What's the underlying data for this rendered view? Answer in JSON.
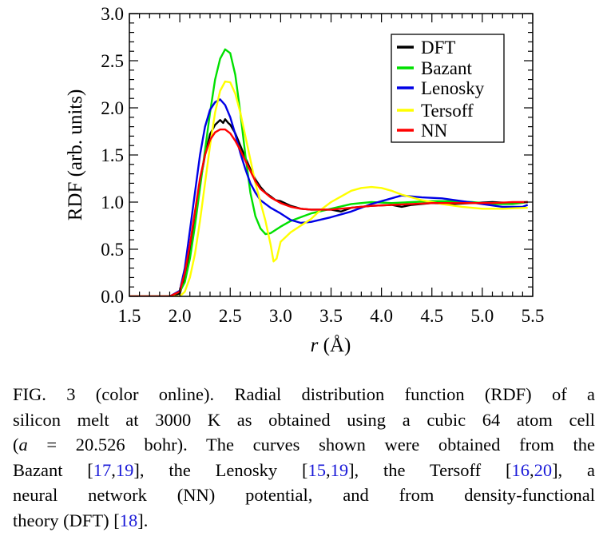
{
  "chart_data": {
    "type": "line",
    "xlabel_italic": "r",
    "xlabel_rest": " (Å)",
    "ylabel": "RDF (arb. units)",
    "xlim": [
      1.5,
      5.5
    ],
    "ylim": [
      0.0,
      3.0
    ],
    "xticks": [
      "1.5",
      "2.0",
      "2.5",
      "3.0",
      "3.5",
      "4.0",
      "4.5",
      "5.0",
      "5.5"
    ],
    "yticks": [
      "0.0",
      "0.5",
      "1.0",
      "1.5",
      "2.0",
      "2.5",
      "3.0"
    ],
    "grid": false,
    "legend_position": "top-right",
    "series": [
      {
        "name": "DFT",
        "color": "#000000",
        "points": [
          [
            1.5,
            0
          ],
          [
            1.9,
            0
          ],
          [
            2.0,
            0.03
          ],
          [
            2.05,
            0.2
          ],
          [
            2.1,
            0.5
          ],
          [
            2.15,
            0.85
          ],
          [
            2.2,
            1.2
          ],
          [
            2.25,
            1.5
          ],
          [
            2.3,
            1.72
          ],
          [
            2.35,
            1.82
          ],
          [
            2.4,
            1.87
          ],
          [
            2.43,
            1.84
          ],
          [
            2.45,
            1.88
          ],
          [
            2.48,
            1.84
          ],
          [
            2.5,
            1.82
          ],
          [
            2.55,
            1.73
          ],
          [
            2.6,
            1.6
          ],
          [
            2.65,
            1.47
          ],
          [
            2.7,
            1.35
          ],
          [
            2.75,
            1.24
          ],
          [
            2.8,
            1.16
          ],
          [
            2.85,
            1.1
          ],
          [
            2.9,
            1.06
          ],
          [
            2.95,
            1.02
          ],
          [
            3.0,
            1.01
          ],
          [
            3.1,
            0.96
          ],
          [
            3.2,
            0.93
          ],
          [
            3.3,
            0.92
          ],
          [
            3.5,
            0.92
          ],
          [
            3.6,
            0.9
          ],
          [
            3.7,
            0.94
          ],
          [
            3.9,
            0.96
          ],
          [
            4.1,
            0.97
          ],
          [
            4.2,
            0.95
          ],
          [
            4.3,
            0.97
          ],
          [
            4.5,
            0.99
          ],
          [
            4.7,
            0.98
          ],
          [
            4.9,
            0.99
          ],
          [
            5.1,
            1.0
          ],
          [
            5.3,
            0.99
          ],
          [
            5.45,
            1.0
          ]
        ]
      },
      {
        "name": "Bazant",
        "color": "#00e000",
        "points": [
          [
            1.5,
            0
          ],
          [
            1.9,
            0
          ],
          [
            2.0,
            0.05
          ],
          [
            2.05,
            0.15
          ],
          [
            2.1,
            0.4
          ],
          [
            2.15,
            0.75
          ],
          [
            2.2,
            1.15
          ],
          [
            2.25,
            1.55
          ],
          [
            2.3,
            1.95
          ],
          [
            2.35,
            2.3
          ],
          [
            2.4,
            2.52
          ],
          [
            2.45,
            2.62
          ],
          [
            2.5,
            2.58
          ],
          [
            2.55,
            2.35
          ],
          [
            2.6,
            1.95
          ],
          [
            2.65,
            1.5
          ],
          [
            2.7,
            1.1
          ],
          [
            2.75,
            0.85
          ],
          [
            2.8,
            0.72
          ],
          [
            2.85,
            0.66
          ],
          [
            2.9,
            0.67
          ],
          [
            3.0,
            0.74
          ],
          [
            3.1,
            0.8
          ],
          [
            3.2,
            0.84
          ],
          [
            3.3,
            0.88
          ],
          [
            3.5,
            0.93
          ],
          [
            3.7,
            0.98
          ],
          [
            3.9,
            1.0
          ],
          [
            4.1,
            0.99
          ],
          [
            4.3,
            1.0
          ],
          [
            4.5,
            1.01
          ],
          [
            4.7,
            1.01
          ],
          [
            4.9,
            1.0
          ],
          [
            5.1,
            0.98
          ],
          [
            5.3,
            0.98
          ],
          [
            5.45,
            1.0
          ]
        ]
      },
      {
        "name": "Lenosky",
        "color": "#0000e6",
        "points": [
          [
            1.5,
            0
          ],
          [
            1.9,
            0
          ],
          [
            2.0,
            0.06
          ],
          [
            2.05,
            0.3
          ],
          [
            2.1,
            0.7
          ],
          [
            2.15,
            1.1
          ],
          [
            2.2,
            1.5
          ],
          [
            2.25,
            1.8
          ],
          [
            2.3,
            1.98
          ],
          [
            2.35,
            2.06
          ],
          [
            2.4,
            2.09
          ],
          [
            2.45,
            2.03
          ],
          [
            2.5,
            1.9
          ],
          [
            2.55,
            1.72
          ],
          [
            2.6,
            1.52
          ],
          [
            2.65,
            1.35
          ],
          [
            2.7,
            1.2
          ],
          [
            2.75,
            1.1
          ],
          [
            2.8,
            1.02
          ],
          [
            2.9,
            0.94
          ],
          [
            3.0,
            0.88
          ],
          [
            3.1,
            0.81
          ],
          [
            3.2,
            0.78
          ],
          [
            3.3,
            0.79
          ],
          [
            3.5,
            0.84
          ],
          [
            3.7,
            0.9
          ],
          [
            3.9,
            0.98
          ],
          [
            4.1,
            1.04
          ],
          [
            4.2,
            1.07
          ],
          [
            4.4,
            1.05
          ],
          [
            4.6,
            1.04
          ],
          [
            4.8,
            1.01
          ],
          [
            5.0,
            0.98
          ],
          [
            5.2,
            0.95
          ],
          [
            5.4,
            0.95
          ],
          [
            5.45,
            0.97
          ]
        ]
      },
      {
        "name": "Tersoff",
        "color": "#ffff00",
        "points": [
          [
            1.5,
            0
          ],
          [
            2.0,
            0
          ],
          [
            2.05,
            0.05
          ],
          [
            2.1,
            0.2
          ],
          [
            2.15,
            0.45
          ],
          [
            2.2,
            0.8
          ],
          [
            2.25,
            1.2
          ],
          [
            2.3,
            1.6
          ],
          [
            2.35,
            1.95
          ],
          [
            2.4,
            2.18
          ],
          [
            2.45,
            2.28
          ],
          [
            2.5,
            2.27
          ],
          [
            2.55,
            2.15
          ],
          [
            2.6,
            1.95
          ],
          [
            2.65,
            1.7
          ],
          [
            2.7,
            1.45
          ],
          [
            2.75,
            1.2
          ],
          [
            2.8,
            1.0
          ],
          [
            2.85,
            0.8
          ],
          [
            2.9,
            0.55
          ],
          [
            2.93,
            0.37
          ],
          [
            2.96,
            0.4
          ],
          [
            3.0,
            0.58
          ],
          [
            3.05,
            0.63
          ],
          [
            3.1,
            0.68
          ],
          [
            3.2,
            0.75
          ],
          [
            3.3,
            0.82
          ],
          [
            3.4,
            0.92
          ],
          [
            3.5,
            1.0
          ],
          [
            3.6,
            1.06
          ],
          [
            3.7,
            1.12
          ],
          [
            3.8,
            1.15
          ],
          [
            3.9,
            1.16
          ],
          [
            4.0,
            1.15
          ],
          [
            4.1,
            1.12
          ],
          [
            4.2,
            1.08
          ],
          [
            4.4,
            1.02
          ],
          [
            4.6,
            0.98
          ],
          [
            4.8,
            0.95
          ],
          [
            5.0,
            0.93
          ],
          [
            5.2,
            0.93
          ],
          [
            5.45,
            0.94
          ]
        ]
      },
      {
        "name": "NN",
        "color": "#ff0000",
        "points": [
          [
            1.5,
            0
          ],
          [
            1.9,
            0
          ],
          [
            2.0,
            0.05
          ],
          [
            2.05,
            0.25
          ],
          [
            2.1,
            0.55
          ],
          [
            2.15,
            0.9
          ],
          [
            2.2,
            1.25
          ],
          [
            2.25,
            1.5
          ],
          [
            2.3,
            1.66
          ],
          [
            2.35,
            1.74
          ],
          [
            2.4,
            1.77
          ],
          [
            2.45,
            1.77
          ],
          [
            2.5,
            1.73
          ],
          [
            2.55,
            1.65
          ],
          [
            2.6,
            1.55
          ],
          [
            2.65,
            1.44
          ],
          [
            2.7,
            1.33
          ],
          [
            2.75,
            1.22
          ],
          [
            2.8,
            1.14
          ],
          [
            2.9,
            1.05
          ],
          [
            3.0,
            0.99
          ],
          [
            3.1,
            0.95
          ],
          [
            3.2,
            0.93
          ],
          [
            3.3,
            0.92
          ],
          [
            3.5,
            0.92
          ],
          [
            3.7,
            0.94
          ],
          [
            3.9,
            0.96
          ],
          [
            4.1,
            0.97
          ],
          [
            4.3,
            0.98
          ],
          [
            4.5,
            0.99
          ],
          [
            4.7,
            0.99
          ],
          [
            4.9,
            0.99
          ],
          [
            5.1,
            0.99
          ],
          [
            5.3,
            1.0
          ],
          [
            5.45,
            1.0
          ]
        ]
      }
    ]
  },
  "caption": {
    "ref_color": "#1a1ad8",
    "lines": [
      [
        {
          "t": "FIG. 3 (color online).   Radial distribution function (RDF) of a"
        }
      ],
      [
        {
          "t": "silicon melt at 3000 K as obtained using a cubic 64 atom cell"
        }
      ],
      [
        {
          "t": "("
        },
        {
          "t": "a",
          "i": true
        },
        {
          "t": " = 20.526 bohr). The curves shown were obtained from the"
        }
      ],
      [
        {
          "t": "Bazant ["
        },
        {
          "t": "17",
          "ref": true
        },
        {
          "t": ","
        },
        {
          "t": "19",
          "ref": true
        },
        {
          "t": "], the Lenosky ["
        },
        {
          "t": "15",
          "ref": true
        },
        {
          "t": ","
        },
        {
          "t": "19",
          "ref": true
        },
        {
          "t": "], the Tersoff ["
        },
        {
          "t": "16",
          "ref": true
        },
        {
          "t": ","
        },
        {
          "t": "20",
          "ref": true
        },
        {
          "t": "], a"
        }
      ],
      [
        {
          "t": "neural network (NN) potential, and from density-functional"
        }
      ],
      [
        {
          "t": "theory (DFT) ["
        },
        {
          "t": "18",
          "ref": true
        },
        {
          "t": "]."
        }
      ]
    ]
  }
}
